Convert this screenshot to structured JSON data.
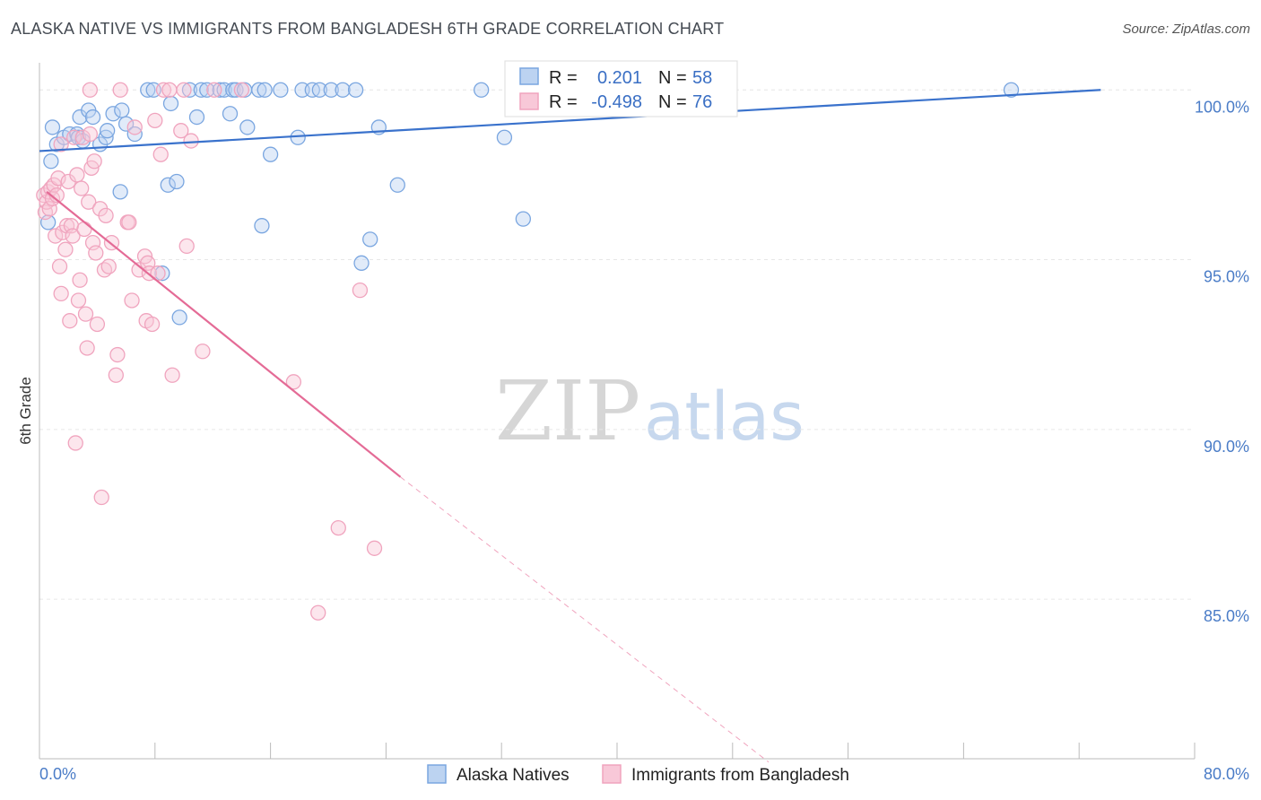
{
  "title": "ALASKA NATIVE VS IMMIGRANTS FROM BANGLADESH 6TH GRADE CORRELATION CHART",
  "source": "Source: ZipAtlas.com",
  "watermark": {
    "zip": "ZIP",
    "atlas": "atlas"
  },
  "chart_data": {
    "type": "scatter",
    "title": "ALASKA NATIVE VS IMMIGRANTS FROM BANGLADESH 6TH GRADE CORRELATION CHART",
    "xlabel": "",
    "ylabel": "6th Grade",
    "xlim": [
      0,
      80
    ],
    "ylim": [
      80.3,
      100.8
    ],
    "x_tick_labels": [
      "0.0%",
      "80.0%"
    ],
    "y_ticks": [
      {
        "value": 100,
        "label": "100.0%"
      },
      {
        "value": 95,
        "label": "95.0%"
      },
      {
        "value": 90,
        "label": "90.0%"
      },
      {
        "value": 85,
        "label": "85.0%"
      }
    ],
    "grid": true,
    "legend_placement": "top-center",
    "colors": {
      "blue": "#7aa6e0",
      "blue_line": "#3a72cc",
      "pink": "#f0a4be",
      "pink_line": "#e46b96"
    },
    "legend": [
      {
        "r_label": "R =",
        "r_value": "0.201",
        "n_label": "N =",
        "n_value": "58"
      },
      {
        "r_label": "R =",
        "r_value": "-0.498",
        "n_label": "N =",
        "n_value": "76"
      }
    ],
    "series": [
      {
        "name": "Alaska Natives",
        "color": "#7aa6e0",
        "trend": {
          "x": [
            0,
            73.5
          ],
          "y": [
            98.2,
            100.0
          ]
        },
        "points": [
          [
            0.6,
            96.1
          ],
          [
            0.8,
            97.9
          ],
          [
            0.9,
            98.9
          ],
          [
            1.2,
            98.4
          ],
          [
            1.7,
            98.6
          ],
          [
            2.1,
            98.7
          ],
          [
            2.6,
            98.7
          ],
          [
            2.7,
            98.6
          ],
          [
            2.8,
            99.2
          ],
          [
            3.0,
            98.5
          ],
          [
            3.4,
            99.4
          ],
          [
            3.7,
            99.2
          ],
          [
            4.2,
            98.4
          ],
          [
            4.6,
            98.6
          ],
          [
            4.7,
            98.8
          ],
          [
            5.1,
            99.3
          ],
          [
            5.6,
            97.0
          ],
          [
            5.7,
            99.4
          ],
          [
            6.0,
            99.0
          ],
          [
            6.6,
            98.7
          ],
          [
            7.5,
            100.0
          ],
          [
            7.9,
            100.0
          ],
          [
            8.5,
            94.6
          ],
          [
            8.9,
            97.2
          ],
          [
            9.1,
            99.6
          ],
          [
            9.5,
            97.3
          ],
          [
            9.7,
            93.3
          ],
          [
            10.4,
            100.0
          ],
          [
            10.9,
            99.2
          ],
          [
            11.2,
            100.0
          ],
          [
            11.6,
            100.0
          ],
          [
            12.5,
            100.0
          ],
          [
            12.8,
            100.0
          ],
          [
            13.2,
            99.3
          ],
          [
            13.4,
            100.0
          ],
          [
            13.6,
            100.0
          ],
          [
            14.2,
            100.0
          ],
          [
            14.4,
            98.9
          ],
          [
            15.2,
            100.0
          ],
          [
            15.4,
            96.0
          ],
          [
            15.6,
            100.0
          ],
          [
            16.0,
            98.1
          ],
          [
            16.7,
            100.0
          ],
          [
            17.9,
            98.6
          ],
          [
            18.2,
            100.0
          ],
          [
            18.9,
            100.0
          ],
          [
            19.4,
            100.0
          ],
          [
            20.2,
            100.0
          ],
          [
            21.0,
            100.0
          ],
          [
            21.9,
            100.0
          ],
          [
            22.3,
            94.9
          ],
          [
            22.9,
            95.6
          ],
          [
            23.5,
            98.9
          ],
          [
            24.8,
            97.2
          ],
          [
            30.6,
            100.0
          ],
          [
            32.2,
            98.6
          ],
          [
            33.5,
            96.2
          ],
          [
            67.3,
            100.0
          ]
        ]
      },
      {
        "name": "Immigrants from Bangladesh",
        "color": "#f0a4be",
        "trend": {
          "x": [
            0.5,
            25.0
          ],
          "y": [
            97.0,
            88.6
          ],
          "dash_x": [
            25.0,
            50.5
          ],
          "dash_y": [
            88.6,
            80.2
          ]
        },
        "points": [
          [
            0.3,
            96.9
          ],
          [
            0.4,
            96.4
          ],
          [
            0.5,
            96.7
          ],
          [
            0.6,
            97.0
          ],
          [
            0.7,
            96.5
          ],
          [
            0.8,
            97.1
          ],
          [
            0.9,
            96.8
          ],
          [
            1.0,
            97.2
          ],
          [
            1.1,
            95.7
          ],
          [
            1.2,
            96.9
          ],
          [
            1.3,
            97.4
          ],
          [
            1.4,
            94.8
          ],
          [
            1.5,
            94.0
          ],
          [
            1.6,
            95.8
          ],
          [
            1.8,
            95.3
          ],
          [
            1.9,
            96.0
          ],
          [
            2.0,
            97.3
          ],
          [
            2.1,
            93.2
          ],
          [
            2.2,
            96.0
          ],
          [
            2.3,
            95.7
          ],
          [
            2.4,
            98.6
          ],
          [
            2.5,
            89.6
          ],
          [
            2.6,
            97.5
          ],
          [
            2.7,
            93.8
          ],
          [
            2.8,
            94.4
          ],
          [
            2.9,
            97.1
          ],
          [
            3.0,
            98.6
          ],
          [
            3.1,
            95.9
          ],
          [
            3.2,
            93.4
          ],
          [
            3.3,
            92.4
          ],
          [
            3.4,
            96.7
          ],
          [
            3.5,
            98.7
          ],
          [
            3.6,
            97.7
          ],
          [
            3.7,
            95.5
          ],
          [
            3.8,
            97.9
          ],
          [
            3.9,
            95.2
          ],
          [
            4.0,
            93.1
          ],
          [
            4.2,
            96.5
          ],
          [
            4.3,
            88.0
          ],
          [
            4.5,
            94.7
          ],
          [
            4.6,
            96.3
          ],
          [
            4.8,
            94.8
          ],
          [
            5.0,
            95.5
          ],
          [
            5.3,
            91.6
          ],
          [
            5.4,
            92.2
          ],
          [
            6.1,
            96.1
          ],
          [
            6.2,
            96.1
          ],
          [
            6.4,
            93.8
          ],
          [
            6.6,
            98.9
          ],
          [
            6.9,
            94.7
          ],
          [
            7.3,
            95.1
          ],
          [
            7.4,
            93.2
          ],
          [
            7.5,
            94.9
          ],
          [
            7.6,
            94.6
          ],
          [
            7.8,
            93.1
          ],
          [
            8.0,
            99.1
          ],
          [
            8.2,
            94.6
          ],
          [
            8.4,
            98.1
          ],
          [
            8.6,
            100.0
          ],
          [
            9.0,
            100.0
          ],
          [
            9.2,
            91.6
          ],
          [
            9.8,
            98.8
          ],
          [
            10.0,
            100.0
          ],
          [
            10.5,
            98.5
          ],
          [
            11.3,
            92.3
          ],
          [
            12.1,
            100.0
          ],
          [
            14.0,
            100.0
          ],
          [
            17.6,
            91.4
          ],
          [
            19.3,
            84.6
          ],
          [
            20.7,
            87.1
          ],
          [
            22.2,
            94.1
          ],
          [
            23.2,
            86.5
          ],
          [
            3.5,
            100.0
          ],
          [
            5.6,
            100.0
          ],
          [
            10.2,
            95.4
          ],
          [
            1.5,
            98.4
          ]
        ]
      }
    ]
  }
}
